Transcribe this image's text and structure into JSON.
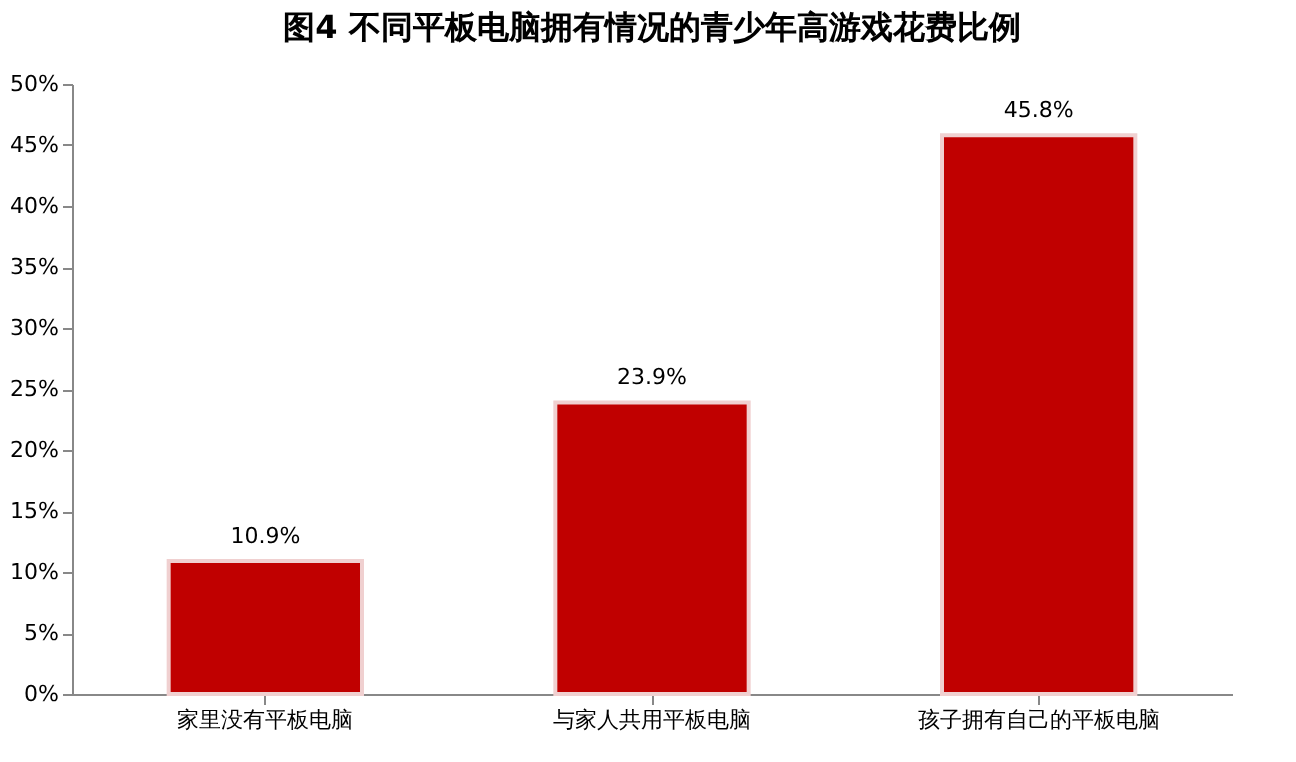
{
  "chart_data": {
    "type": "bar",
    "title": "图4  不同平板电脑拥有情况的青少年高游戏花费比例",
    "categories": [
      "家里没有平板电脑",
      "与家人共用平板电脑",
      "孩子拥有自己的平板电脑"
    ],
    "values": [
      10.9,
      23.9,
      45.8
    ],
    "value_labels": [
      "10.9%",
      "23.9%",
      "45.8%"
    ],
    "color": "#c00000",
    "ylim": [
      0,
      50
    ],
    "yticks": [
      {
        "value": 0,
        "label": "0%"
      },
      {
        "value": 5,
        "label": "5%"
      },
      {
        "value": 10,
        "label": "10%"
      },
      {
        "value": 15,
        "label": "15%"
      },
      {
        "value": 20,
        "label": "20%"
      },
      {
        "value": 25,
        "label": "25%"
      },
      {
        "value": 30,
        "label": "30%"
      },
      {
        "value": 35,
        "label": "35%"
      },
      {
        "value": 40,
        "label": "40%"
      },
      {
        "value": 45,
        "label": "45%"
      },
      {
        "value": 50,
        "label": "50%"
      }
    ],
    "grid": false
  }
}
